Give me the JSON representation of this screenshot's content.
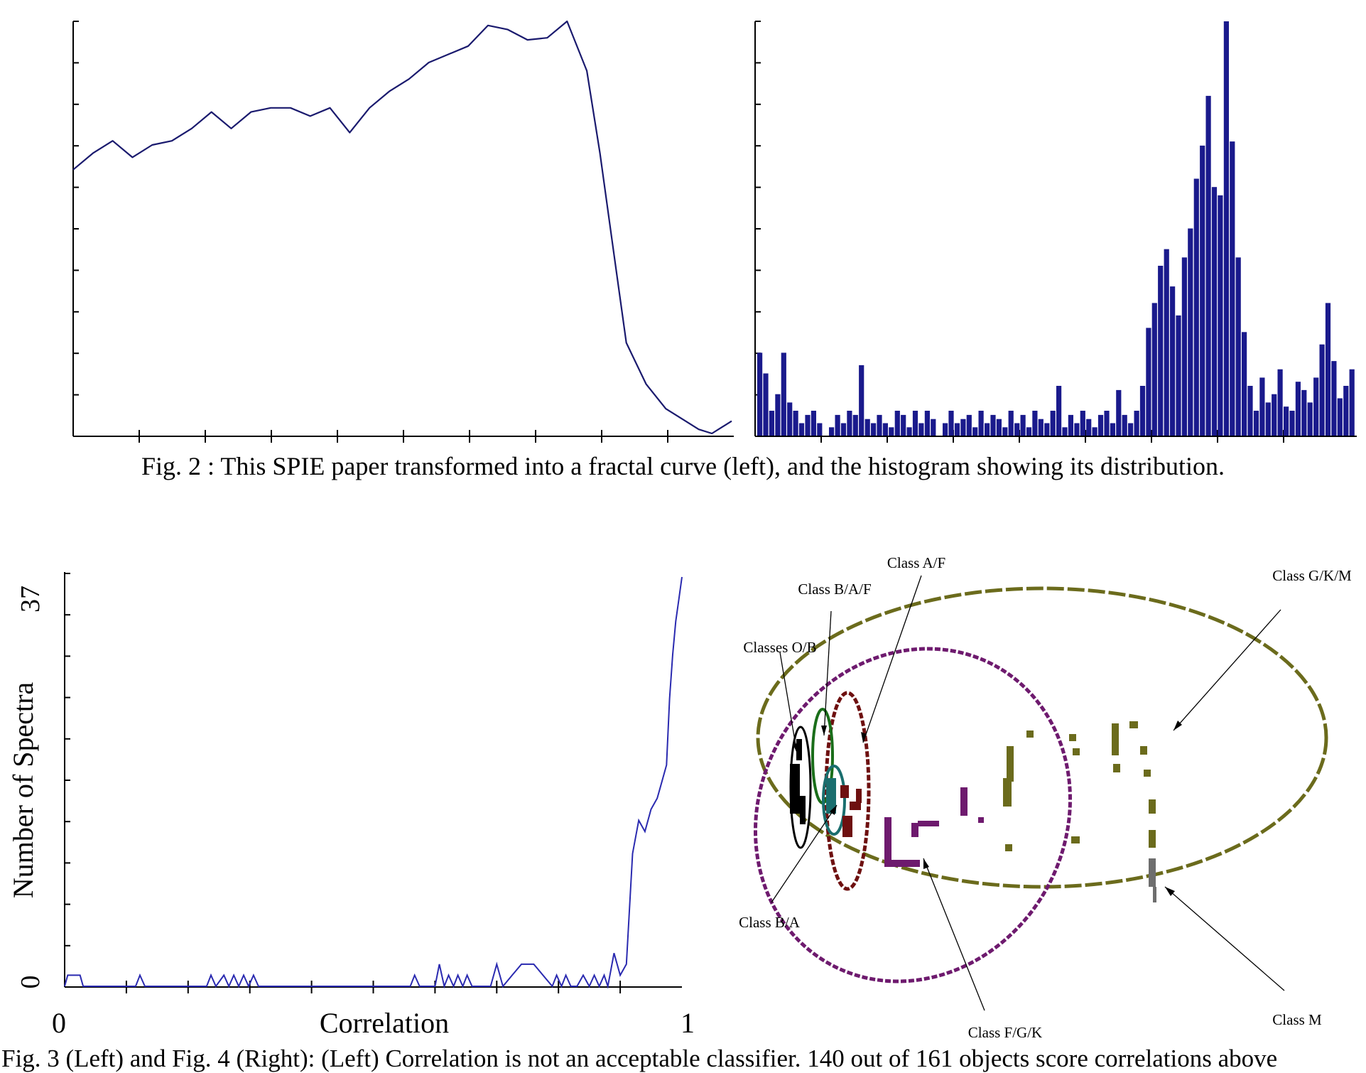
{
  "figure2": {
    "caption": "Fig. 2 : This SPIE paper transformed into a fractal curve (left), and the histogram showing its distribution."
  },
  "figure3_4": {
    "caption": "Fig. 3 (Left) and Fig. 4 (Right): (Left) Correlation is not an acceptable classifier. 140 out of 161 objects score correlations above"
  },
  "chart_data": [
    {
      "id": "fractal-curve",
      "type": "line",
      "title": "",
      "xlabel": "",
      "ylabel": "",
      "tick_labels": false,
      "series": [
        {
          "color": "#1a1a6e",
          "x": [
            0,
            3,
            6,
            9,
            12,
            15,
            18,
            21,
            24,
            27,
            30,
            33,
            36,
            39,
            42,
            45,
            48,
            51,
            54,
            57,
            60,
            63,
            66,
            69,
            72,
            75,
            78,
            80,
            82,
            84,
            87,
            90,
            93,
            95,
            97,
            99,
            100
          ],
          "y": [
            0.64,
            0.68,
            0.71,
            0.67,
            0.7,
            0.71,
            0.74,
            0.78,
            0.74,
            0.78,
            0.79,
            0.79,
            0.77,
            0.79,
            0.73,
            0.79,
            0.83,
            0.86,
            0.9,
            0.92,
            0.94,
            0.99,
            0.98,
            0.955,
            0.96,
            1.0,
            0.88,
            0.68,
            0.45,
            0.22,
            0.12,
            0.06,
            0.03,
            0.01,
            0.0,
            0.02,
            0.03
          ]
        }
      ]
    },
    {
      "id": "fractal-histogram",
      "type": "bar",
      "title": "",
      "xlabel": "",
      "ylabel": "",
      "color": "#1a1a8c",
      "bins": 100,
      "values": [
        0.2,
        0.15,
        0.06,
        0.1,
        0.2,
        0.08,
        0.06,
        0.03,
        0.05,
        0.06,
        0.03,
        0.0,
        0.02,
        0.05,
        0.03,
        0.06,
        0.05,
        0.17,
        0.04,
        0.03,
        0.05,
        0.03,
        0.02,
        0.06,
        0.05,
        0.02,
        0.06,
        0.03,
        0.06,
        0.04,
        0.0,
        0.03,
        0.06,
        0.03,
        0.04,
        0.05,
        0.02,
        0.06,
        0.03,
        0.05,
        0.04,
        0.02,
        0.06,
        0.03,
        0.05,
        0.02,
        0.06,
        0.04,
        0.03,
        0.06,
        0.12,
        0.02,
        0.05,
        0.03,
        0.06,
        0.04,
        0.02,
        0.05,
        0.06,
        0.03,
        0.11,
        0.05,
        0.03,
        0.06,
        0.12,
        0.26,
        0.32,
        0.41,
        0.45,
        0.36,
        0.29,
        0.43,
        0.5,
        0.62,
        0.7,
        0.82,
        0.6,
        0.58,
        1.0,
        0.71,
        0.43,
        0.25,
        0.12,
        0.06,
        0.14,
        0.08,
        0.1,
        0.16,
        0.07,
        0.06,
        0.13,
        0.11,
        0.08,
        0.14,
        0.22,
        0.32,
        0.18,
        0.09,
        0.12,
        0.16
      ]
    },
    {
      "id": "correlation-histogram",
      "type": "line",
      "title": "",
      "xlabel": "Correlation",
      "ylabel": "Number of Spectra",
      "xlim": [
        0,
        1
      ],
      "ylim": [
        0,
        37
      ],
      "x_tick_labels": [
        "0",
        "1"
      ],
      "y_tick_labels": [
        "0",
        "37"
      ],
      "color": "#2a2ab0",
      "series": [
        {
          "x": [
            0.0,
            0.005,
            0.01,
            0.025,
            0.03,
            0.115,
            0.122,
            0.13,
            0.23,
            0.237,
            0.245,
            0.258,
            0.266,
            0.274,
            0.282,
            0.29,
            0.298,
            0.306,
            0.314,
            0.322,
            0.56,
            0.567,
            0.575,
            0.6,
            0.607,
            0.615,
            0.622,
            0.63,
            0.637,
            0.645,
            0.652,
            0.66,
            0.69,
            0.7,
            0.71,
            0.725,
            0.74,
            0.76,
            0.79,
            0.797,
            0.805,
            0.812,
            0.82,
            0.83,
            0.84,
            0.85,
            0.858,
            0.866,
            0.874,
            0.88,
            0.89,
            0.9,
            0.91,
            0.92,
            0.93,
            0.94,
            0.95,
            0.96,
            0.965,
            0.975,
            0.98,
            0.985,
            0.99,
            0.995,
            1.0
          ],
          "y": [
            0,
            1,
            1,
            1,
            0,
            0,
            1,
            0,
            0,
            1,
            0,
            1,
            0,
            1,
            0,
            1,
            0,
            1,
            0,
            0,
            0,
            1,
            0,
            0,
            2,
            0,
            1,
            0,
            1,
            0,
            1,
            0,
            0,
            2,
            0,
            1,
            2,
            2,
            0,
            1,
            0,
            1,
            0,
            0,
            1,
            0,
            1,
            0,
            1,
            0,
            3,
            1,
            2,
            12,
            15,
            14,
            16,
            17,
            18,
            20,
            26,
            30,
            33,
            35,
            37
          ]
        }
      ]
    },
    {
      "id": "class-map",
      "type": "scatter",
      "title": "",
      "annotations": [
        "Class A/F",
        "Class B/A/F",
        "Classes O/B",
        "Class G/K/M",
        "Class B/A",
        "Class F/G/K",
        "Class M"
      ],
      "colors": {
        "G/K/M": "#6b6b1c",
        "F/G/K": "#6e1a6e",
        "A/F": "#6e1010",
        "B/A/F": "#1a6e1a",
        "O/B": "#000000",
        "B/A": "#1a6e6e",
        "M": "#6e6e6e"
      }
    }
  ]
}
